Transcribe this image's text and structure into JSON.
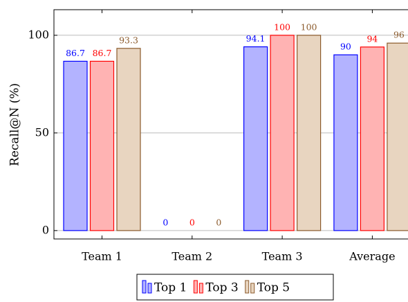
{
  "chart_data": {
    "type": "bar",
    "categories": [
      "Team 1",
      "Team 2",
      "Team 3",
      "Average"
    ],
    "series": [
      {
        "name": "Top 1",
        "color": "#0000ff",
        "fill": "#b3b3ff",
        "values": [
          86.7,
          0,
          94.1,
          90
        ]
      },
      {
        "name": "Top 3",
        "color": "#ff0000",
        "fill": "#ffb3b3",
        "values": [
          86.7,
          0,
          100,
          94
        ]
      },
      {
        "name": "Top 5",
        "color": "#8b5a2b",
        "fill": "#e8d5c0",
        "values": [
          93.3,
          0,
          100,
          96
        ]
      }
    ],
    "ylabel": "Recall@N (%)",
    "ylim": [
      -4.3,
      113.1
    ],
    "yticks": [
      0,
      50,
      100
    ],
    "grid": true,
    "legend": "bottom"
  }
}
